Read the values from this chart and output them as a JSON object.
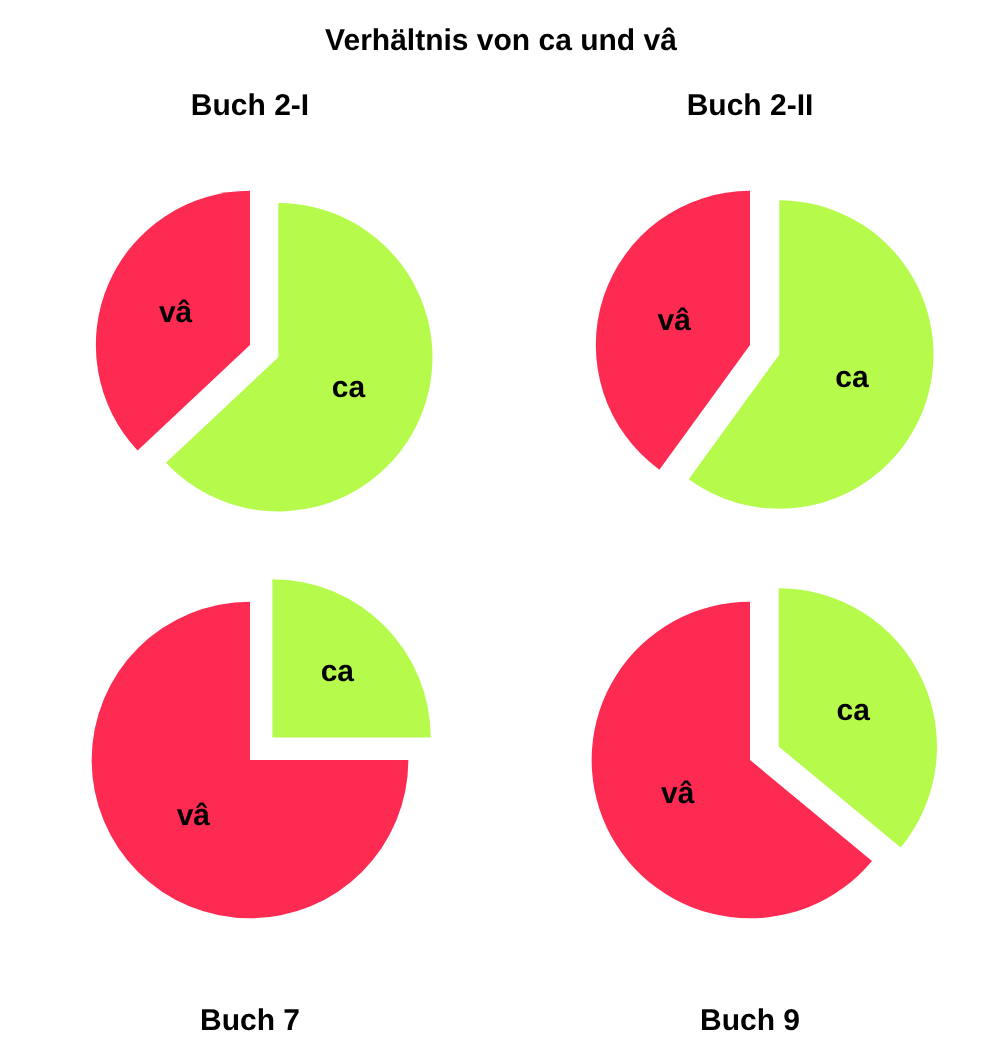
{
  "chart_data": [
    {
      "type": "other",
      "title": "Verhältnis von ca und vâ"
    },
    {
      "type": "pie",
      "title": "Buch 2-I",
      "categories": [
        "ca",
        "vâ"
      ],
      "values": [
        63,
        37
      ],
      "colors": [
        "#b6fb4c",
        "#fd2a52"
      ]
    },
    {
      "type": "pie",
      "title": "Buch 2-II",
      "categories": [
        "ca",
        "vâ"
      ],
      "values": [
        60,
        40
      ],
      "colors": [
        "#b6fb4c",
        "#fd2a52"
      ]
    },
    {
      "type": "pie",
      "title": "Buch 7",
      "categories": [
        "ca",
        "vâ"
      ],
      "values": [
        25,
        75
      ],
      "colors": [
        "#b6fb4c",
        "#fd2a52"
      ]
    },
    {
      "type": "pie",
      "title": "Buch 9",
      "categories": [
        "ca",
        "vâ"
      ],
      "values": [
        36,
        64
      ],
      "colors": [
        "#b6fb4c",
        "#fd2a52"
      ]
    }
  ]
}
